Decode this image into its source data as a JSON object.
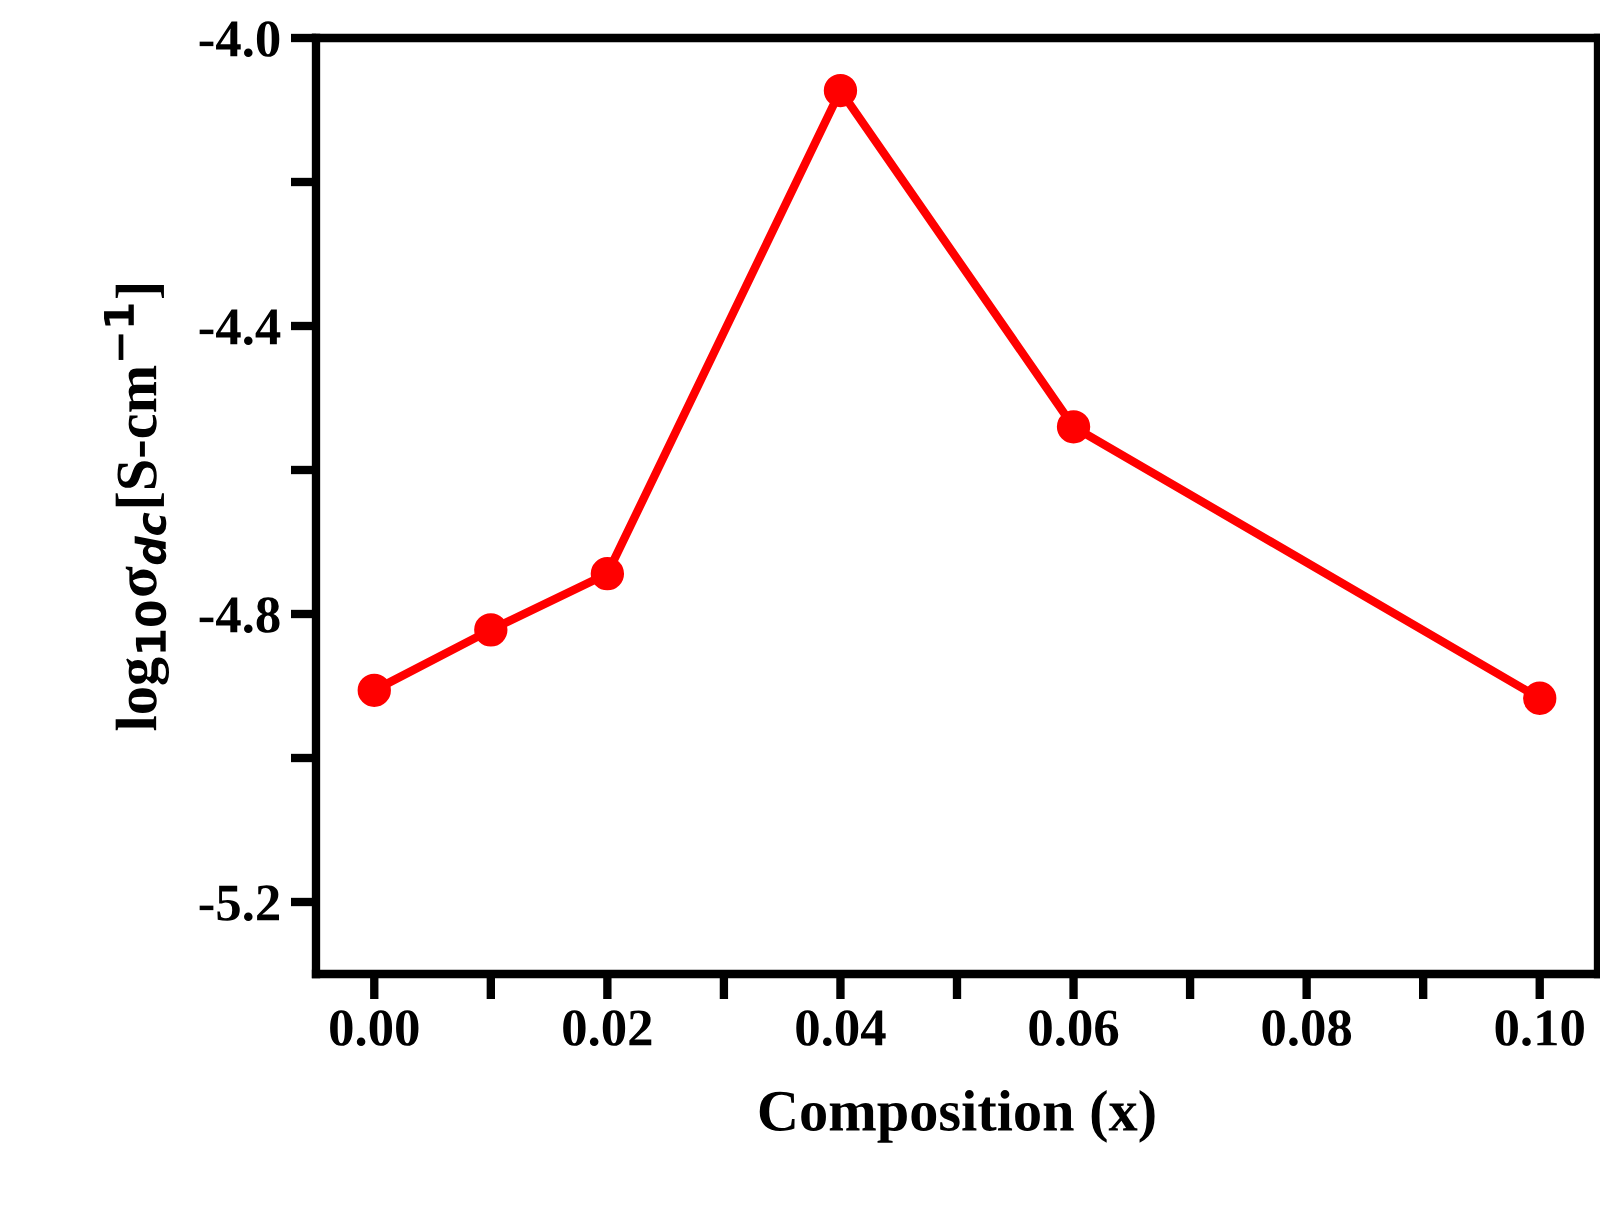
{
  "chart_data": {
    "type": "line",
    "xlabel": "Composition (x)",
    "ylabel": "log$_{10}$σ$_{dc}$[S-cm$^{−1}$]",
    "x": [
      0.0,
      0.01,
      0.02,
      0.04,
      0.06,
      0.1
    ],
    "series": [
      {
        "color": "#ff0000",
        "values": [
          -4.906,
          -4.822,
          -4.744,
          -4.073,
          -4.54,
          -4.917
        ]
      }
    ],
    "xlim": [
      -0.005,
      0.105
    ],
    "ylim": [
      -5.3,
      -4.0
    ],
    "xticks": [
      {
        "value": 0.0,
        "label": "0.00"
      },
      {
        "value": 0.01,
        "label": null
      },
      {
        "value": 0.02,
        "label": "0.02"
      },
      {
        "value": 0.03,
        "label": null
      },
      {
        "value": 0.04,
        "label": "0.04"
      },
      {
        "value": 0.05,
        "label": null
      },
      {
        "value": 0.06,
        "label": "0.06"
      },
      {
        "value": 0.07,
        "label": null
      },
      {
        "value": 0.08,
        "label": "0.08"
      },
      {
        "value": 0.09,
        "label": null
      },
      {
        "value": 0.1,
        "label": "0.10"
      }
    ],
    "yticks": [
      {
        "value": -5.2,
        "label": "-5.2"
      },
      {
        "value": -5.0,
        "label": null
      },
      {
        "value": -4.8,
        "label": "-4.8"
      },
      {
        "value": -4.6,
        "label": null
      },
      {
        "value": -4.4,
        "label": "-4.4"
      },
      {
        "value": -4.2,
        "label": null
      },
      {
        "value": -4.0,
        "label": "-4.0"
      }
    ],
    "marker": "circle",
    "line_style": "solid",
    "grid": false,
    "legend": false
  }
}
